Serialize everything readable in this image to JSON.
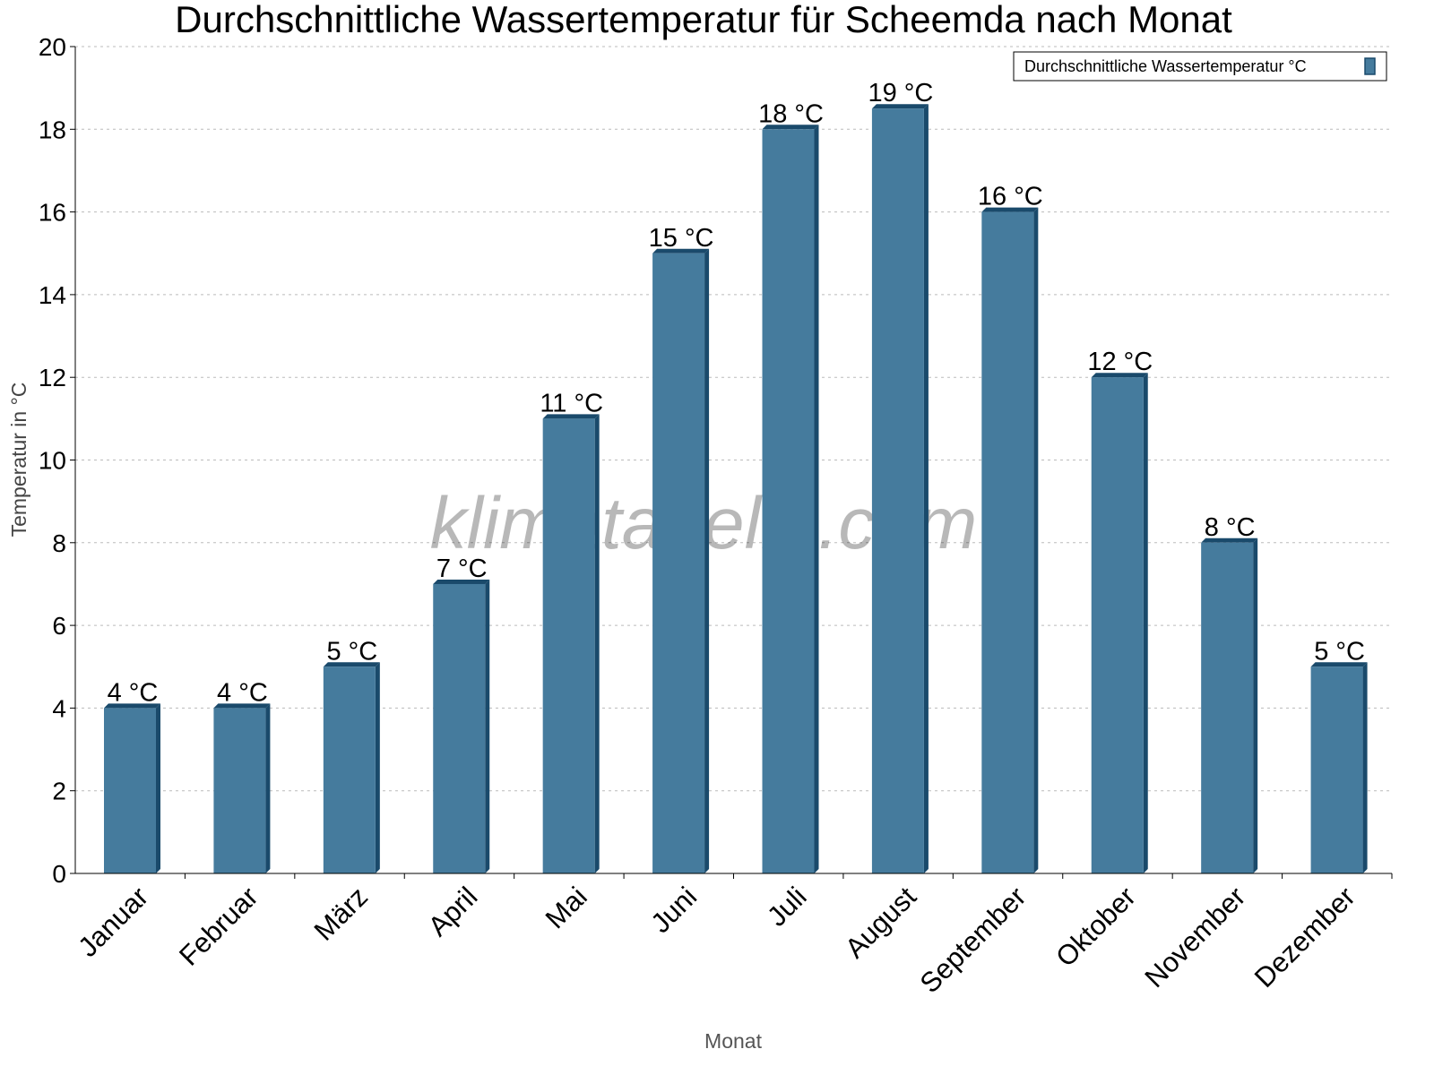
{
  "chart_data": {
    "type": "bar",
    "title": "Durchschnittliche Wassertemperatur für Scheemda nach Monat",
    "xlabel": "Monat",
    "ylabel": "Temperatur in °C",
    "ylim": [
      0,
      20
    ],
    "yticks": [
      "0",
      "2",
      "4",
      "6",
      "8",
      "10",
      "12",
      "14",
      "16",
      "18",
      "20"
    ],
    "grid": true,
    "legend_position": "top-right",
    "categories": [
      "Januar",
      "Februar",
      "März",
      "April",
      "Mai",
      "Juni",
      "Juli",
      "August",
      "September",
      "Oktober",
      "November",
      "Dezember"
    ],
    "series": [
      {
        "name": "Durchschnittliche Wassertemperatur °C",
        "color": "#457b9d",
        "side_color": "#1a4a6b",
        "values": [
          4,
          4,
          5,
          7,
          11,
          15,
          18,
          18.5,
          16,
          12,
          8,
          5
        ],
        "labels": [
          "4 °C",
          "4 °C",
          "5 °C",
          "7 °C",
          "11 °C",
          "15 °C",
          "18 °C",
          "19 °C",
          "16 °C",
          "12 °C",
          "8 °C",
          "5 °C"
        ]
      }
    ],
    "watermark": "klimatabelle.com"
  }
}
